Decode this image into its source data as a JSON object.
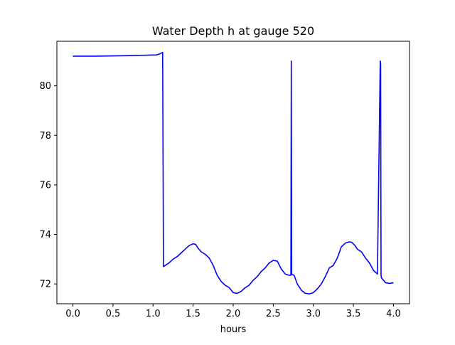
{
  "chart_data": {
    "type": "line",
    "title": "Water Depth h at gauge 520",
    "xlabel": "hours",
    "ylabel": "",
    "xlim": [
      -0.2,
      4.2
    ],
    "ylim": [
      71.2,
      81.8
    ],
    "xticks": [
      0.0,
      0.5,
      1.0,
      1.5,
      2.0,
      2.5,
      3.0,
      3.5,
      4.0
    ],
    "xtick_labels": [
      "0.0",
      "0.5",
      "1.0",
      "1.5",
      "2.0",
      "2.5",
      "3.0",
      "3.5",
      "4.0"
    ],
    "yticks": [
      72,
      74,
      76,
      78,
      80
    ],
    "ytick_labels": [
      "72",
      "74",
      "76",
      "78",
      "80"
    ],
    "grid": false,
    "legend": "none",
    "series": [
      {
        "color": "#0000ff",
        "x": [
          0.0,
          0.3,
          0.7,
          1.05,
          1.09,
          1.12,
          1.13,
          1.14,
          1.2,
          1.25,
          1.3,
          1.35,
          1.4,
          1.45,
          1.5,
          1.53,
          1.56,
          1.6,
          1.65,
          1.7,
          1.75,
          1.8,
          1.85,
          1.9,
          1.95,
          2.0,
          2.05,
          2.1,
          2.15,
          2.2,
          2.25,
          2.3,
          2.35,
          2.4,
          2.45,
          2.5,
          2.55,
          2.6,
          2.65,
          2.7,
          2.72,
          2.725,
          2.73,
          2.735,
          2.76,
          2.8,
          2.85,
          2.9,
          2.95,
          3.0,
          3.05,
          3.1,
          3.15,
          3.2,
          3.25,
          3.3,
          3.35,
          3.4,
          3.45,
          3.48,
          3.52,
          3.55,
          3.6,
          3.65,
          3.7,
          3.75,
          3.8,
          3.835,
          3.84,
          3.845,
          3.85,
          3.9,
          3.95,
          4.0
        ],
        "y": [
          81.2,
          81.2,
          81.22,
          81.25,
          81.3,
          81.35,
          72.7,
          72.72,
          72.85,
          73.0,
          73.1,
          73.25,
          73.4,
          73.55,
          73.62,
          73.6,
          73.45,
          73.3,
          73.2,
          73.05,
          72.75,
          72.35,
          72.1,
          71.95,
          71.85,
          71.65,
          71.62,
          71.7,
          71.85,
          71.95,
          72.15,
          72.3,
          72.5,
          72.65,
          72.85,
          72.95,
          72.92,
          72.6,
          72.4,
          72.35,
          72.35,
          81.0,
          72.4,
          72.38,
          72.35,
          72.0,
          71.75,
          71.62,
          71.6,
          71.65,
          71.8,
          72.0,
          72.3,
          72.65,
          72.75,
          73.05,
          73.5,
          73.65,
          73.7,
          73.68,
          73.55,
          73.4,
          73.3,
          73.05,
          72.85,
          72.55,
          72.4,
          81.0,
          80.9,
          72.35,
          72.25,
          72.05,
          72.02,
          72.05
        ]
      }
    ]
  }
}
